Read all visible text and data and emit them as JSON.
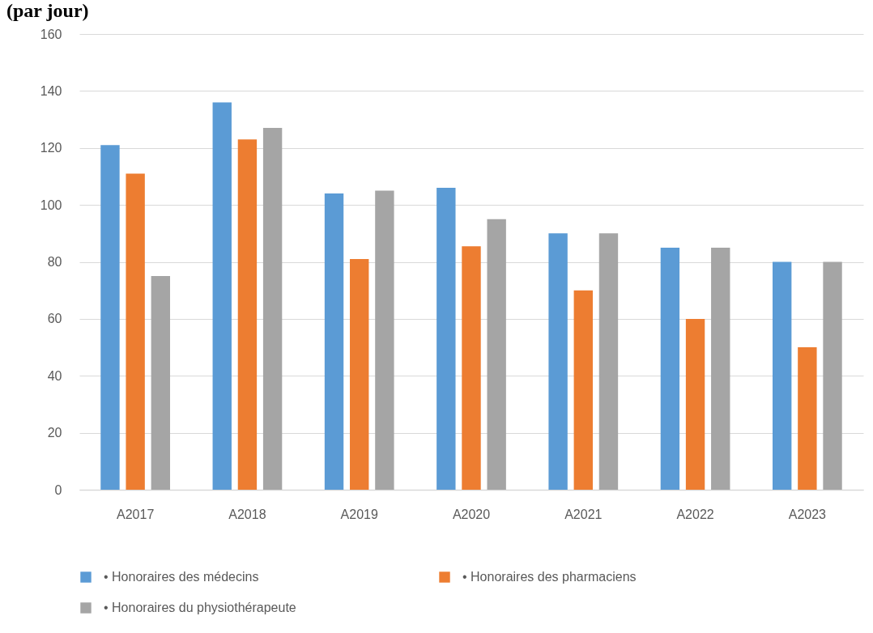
{
  "chart_data": {
    "type": "bar",
    "title": "(par jour)",
    "categories": [
      "A2017",
      "A2018",
      "A2019",
      "A2020",
      "A2021",
      "A2022",
      "A2023"
    ],
    "series": [
      {
        "name": "• Honoraires des médecins",
        "color": "#5b9bd5",
        "values": [
          121,
          136,
          104,
          106,
          90,
          85,
          80
        ]
      },
      {
        "name": "• Honoraires des pharmaciens",
        "color": "#ed7d31",
        "values": [
          111,
          123,
          81,
          85.5,
          70,
          60,
          50
        ]
      },
      {
        "name": "• Honoraires du physiothérapeute",
        "color": "#a5a5a5",
        "values": [
          75,
          127,
          105,
          95,
          90,
          85,
          80
        ]
      }
    ],
    "ylim": [
      0,
      160
    ],
    "yticks": [
      0,
      20,
      40,
      60,
      80,
      100,
      120,
      140,
      160
    ],
    "grid": "y",
    "legend": "bottom"
  }
}
